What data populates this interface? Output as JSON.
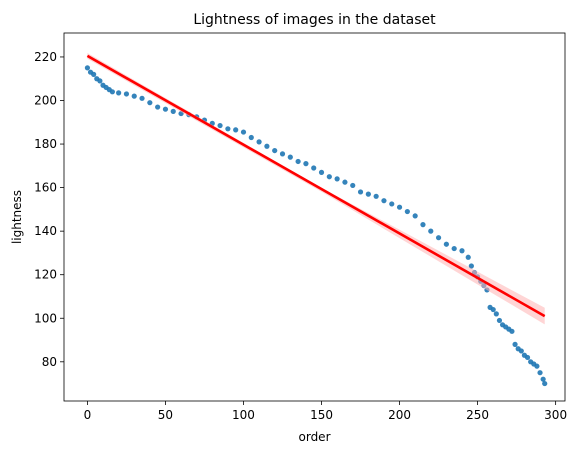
{
  "chart_data": {
    "type": "scatter",
    "title": "Lightness of images in the dataset",
    "xlabel": "order",
    "ylabel": "lightness",
    "xlim": [
      -15,
      306
    ],
    "ylim": [
      62,
      231
    ],
    "xticks": [
      0,
      50,
      100,
      150,
      200,
      250,
      300
    ],
    "yticks": [
      80,
      100,
      120,
      140,
      160,
      180,
      200,
      220
    ],
    "grid": false,
    "legend": "none",
    "colors": {
      "points": "#1f77b4",
      "line": "#ff0000",
      "band": "#ffb3b3"
    },
    "series": [
      {
        "kind": "scatter",
        "points": [
          [
            0,
            215
          ],
          [
            2,
            213
          ],
          [
            4,
            212
          ],
          [
            6,
            210
          ],
          [
            8,
            209
          ],
          [
            10,
            207
          ],
          [
            12,
            206
          ],
          [
            14,
            205
          ],
          [
            16,
            204
          ],
          [
            20,
            203.5
          ],
          [
            25,
            203
          ],
          [
            30,
            202
          ],
          [
            35,
            201
          ],
          [
            40,
            199
          ],
          [
            45,
            197
          ],
          [
            50,
            196
          ],
          [
            55,
            195
          ],
          [
            60,
            194
          ],
          [
            65,
            193.5
          ],
          [
            70,
            192.5
          ],
          [
            75,
            191
          ],
          [
            80,
            189.5
          ],
          [
            85,
            188.5
          ],
          [
            90,
            187
          ],
          [
            95,
            186.5
          ],
          [
            100,
            185.5
          ],
          [
            105,
            183
          ],
          [
            110,
            181
          ],
          [
            115,
            179
          ],
          [
            120,
            177
          ],
          [
            125,
            175.5
          ],
          [
            130,
            174
          ],
          [
            135,
            172
          ],
          [
            140,
            171
          ],
          [
            145,
            169
          ],
          [
            150,
            167
          ],
          [
            155,
            165
          ],
          [
            160,
            164
          ],
          [
            165,
            162.5
          ],
          [
            170,
            161
          ],
          [
            175,
            158
          ],
          [
            180,
            157
          ],
          [
            185,
            156
          ],
          [
            190,
            154
          ],
          [
            195,
            152.5
          ],
          [
            200,
            151
          ],
          [
            205,
            149
          ],
          [
            210,
            147
          ],
          [
            215,
            143
          ],
          [
            220,
            140
          ],
          [
            225,
            137
          ],
          [
            230,
            134
          ],
          [
            235,
            132
          ],
          [
            240,
            131
          ],
          [
            244,
            128
          ],
          [
            246,
            124
          ],
          [
            248,
            121
          ],
          [
            250,
            119
          ],
          [
            252,
            117
          ],
          [
            254,
            115
          ],
          [
            256,
            113
          ],
          [
            258,
            105
          ],
          [
            260,
            104
          ],
          [
            262,
            102
          ],
          [
            264,
            99
          ],
          [
            266,
            97
          ],
          [
            268,
            96
          ],
          [
            270,
            95
          ],
          [
            272,
            94
          ],
          [
            274,
            88
          ],
          [
            276,
            86
          ],
          [
            278,
            85
          ],
          [
            280,
            83
          ],
          [
            282,
            82
          ],
          [
            284,
            80
          ],
          [
            286,
            79
          ],
          [
            288,
            78
          ],
          [
            290,
            75
          ],
          [
            292,
            72
          ],
          [
            293,
            70
          ]
        ]
      },
      {
        "kind": "regression-line",
        "x": [
          0,
          293
        ],
        "y": [
          220.5,
          101
        ]
      },
      {
        "kind": "confidence-band",
        "x": [
          0,
          150,
          293
        ],
        "upper": [
          221.8,
          159.9,
          104.8
        ],
        "lower": [
          219.2,
          158.1,
          97.2
        ]
      }
    ]
  }
}
